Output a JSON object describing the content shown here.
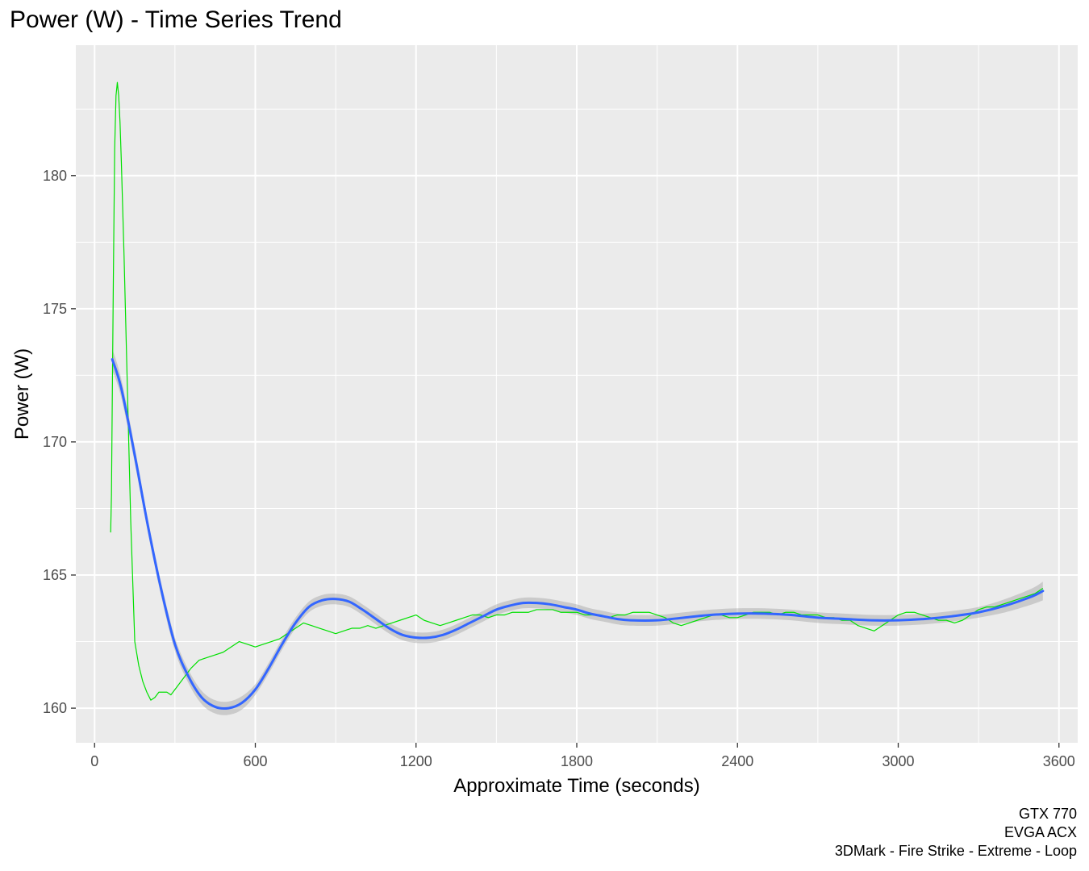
{
  "title": "Power (W) - Time Series Trend",
  "caption": [
    "GTX 770",
    "EVGA ACX",
    "3DMark - Fire Strike - Extreme - Loop"
  ],
  "chart_data": {
    "type": "line",
    "title": "Power (W) - Time Series Trend",
    "xlabel": "Approximate Time (seconds)",
    "ylabel": "Power (W)",
    "xlim": [
      -70,
      3670
    ],
    "ylim": [
      158.7,
      184.9
    ],
    "x_ticks": [
      0,
      600,
      1200,
      1800,
      2400,
      3000,
      3600
    ],
    "y_ticks": [
      160,
      165,
      170,
      175,
      180
    ],
    "grid": true,
    "legend": "none",
    "series": [
      {
        "color": "#00e000",
        "style": "raw",
        "x": [
          60,
          63,
          66,
          70,
          75,
          80,
          85,
          90,
          95,
          100,
          110,
          120,
          135,
          150,
          165,
          180,
          195,
          210,
          225,
          240,
          255,
          270,
          285,
          300,
          315,
          330,
          345,
          360,
          390,
          420,
          450,
          480,
          510,
          540,
          570,
          600,
          630,
          660,
          690,
          720,
          750,
          780,
          810,
          840,
          870,
          900,
          930,
          960,
          990,
          1020,
          1050,
          1080,
          1110,
          1140,
          1170,
          1200,
          1230,
          1260,
          1290,
          1320,
          1350,
          1380,
          1410,
          1440,
          1470,
          1500,
          1530,
          1560,
          1590,
          1620,
          1650,
          1680,
          1710,
          1740,
          1770,
          1800,
          1830,
          1860,
          1890,
          1920,
          1950,
          1980,
          2010,
          2040,
          2070,
          2100,
          2130,
          2160,
          2190,
          2220,
          2250,
          2280,
          2310,
          2340,
          2370,
          2400,
          2430,
          2460,
          2490,
          2520,
          2550,
          2580,
          2610,
          2640,
          2670,
          2700,
          2730,
          2760,
          2790,
          2820,
          2850,
          2880,
          2910,
          2940,
          2970,
          3000,
          3030,
          3060,
          3090,
          3120,
          3150,
          3180,
          3210,
          3240,
          3270,
          3300,
          3330,
          3360,
          3390,
          3420,
          3450,
          3480,
          3510,
          3540
        ],
        "y": [
          166.6,
          168.0,
          171.5,
          176.0,
          181.0,
          183.0,
          183.5,
          183.0,
          182.0,
          180.5,
          177.0,
          173.0,
          167.0,
          162.5,
          161.6,
          161.0,
          160.6,
          160.3,
          160.4,
          160.6,
          160.6,
          160.6,
          160.5,
          160.7,
          160.9,
          161.1,
          161.3,
          161.5,
          161.8,
          161.9,
          162.0,
          162.1,
          162.3,
          162.5,
          162.4,
          162.3,
          162.4,
          162.5,
          162.6,
          162.8,
          163.0,
          163.2,
          163.1,
          163.0,
          162.9,
          162.8,
          162.9,
          163.0,
          163.0,
          163.1,
          163.0,
          163.1,
          163.2,
          163.3,
          163.4,
          163.5,
          163.3,
          163.2,
          163.1,
          163.2,
          163.3,
          163.4,
          163.5,
          163.5,
          163.4,
          163.5,
          163.5,
          163.6,
          163.6,
          163.6,
          163.7,
          163.7,
          163.7,
          163.6,
          163.6,
          163.6,
          163.5,
          163.5,
          163.5,
          163.4,
          163.5,
          163.5,
          163.6,
          163.6,
          163.6,
          163.5,
          163.4,
          163.2,
          163.1,
          163.2,
          163.3,
          163.4,
          163.5,
          163.5,
          163.4,
          163.4,
          163.5,
          163.6,
          163.6,
          163.6,
          163.5,
          163.6,
          163.6,
          163.5,
          163.5,
          163.5,
          163.4,
          163.4,
          163.3,
          163.3,
          163.1,
          163.0,
          162.9,
          163.1,
          163.3,
          163.5,
          163.6,
          163.6,
          163.5,
          163.4,
          163.3,
          163.3,
          163.2,
          163.3,
          163.5,
          163.7,
          163.8,
          163.8,
          163.9,
          164.0,
          164.1,
          164.2,
          164.3,
          164.5
        ]
      },
      {
        "color": "#3366ff",
        "style": "smooth",
        "x": [
          66,
          100,
          150,
          200,
          250,
          300,
          350,
          400,
          450,
          500,
          550,
          600,
          650,
          700,
          750,
          800,
          850,
          900,
          950,
          1000,
          1050,
          1100,
          1150,
          1200,
          1250,
          1300,
          1350,
          1400,
          1450,
          1500,
          1550,
          1600,
          1650,
          1700,
          1750,
          1800,
          1850,
          1900,
          1950,
          2000,
          2100,
          2200,
          2300,
          2400,
          2500,
          2600,
          2700,
          2800,
          2900,
          3000,
          3100,
          3200,
          3300,
          3400,
          3500,
          3540
        ],
        "y": [
          173.1,
          172.0,
          169.5,
          166.8,
          164.4,
          162.4,
          161.2,
          160.4,
          160.05,
          160.0,
          160.2,
          160.7,
          161.5,
          162.4,
          163.2,
          163.8,
          164.05,
          164.1,
          164.0,
          163.7,
          163.35,
          163.0,
          162.75,
          162.65,
          162.65,
          162.75,
          162.95,
          163.2,
          163.45,
          163.7,
          163.85,
          163.95,
          163.95,
          163.9,
          163.8,
          163.7,
          163.55,
          163.45,
          163.35,
          163.3,
          163.3,
          163.4,
          163.5,
          163.55,
          163.55,
          163.5,
          163.4,
          163.35,
          163.3,
          163.3,
          163.35,
          163.45,
          163.6,
          163.85,
          164.2,
          164.4
        ],
        "band": [
          0.4,
          0.35,
          0.3,
          0.25,
          0.25,
          0.25,
          0.25,
          0.25,
          0.25,
          0.25,
          0.25,
          0.2,
          0.2,
          0.2,
          0.2,
          0.2,
          0.2,
          0.2,
          0.2,
          0.2,
          0.2,
          0.2,
          0.2,
          0.2,
          0.2,
          0.2,
          0.2,
          0.2,
          0.2,
          0.2,
          0.2,
          0.2,
          0.2,
          0.2,
          0.2,
          0.2,
          0.2,
          0.2,
          0.2,
          0.2,
          0.2,
          0.2,
          0.2,
          0.2,
          0.2,
          0.2,
          0.2,
          0.2,
          0.2,
          0.2,
          0.2,
          0.2,
          0.2,
          0.25,
          0.3,
          0.35
        ]
      }
    ]
  }
}
